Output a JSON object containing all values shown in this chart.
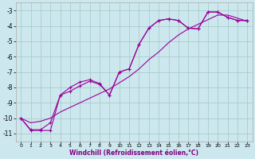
{
  "xlabel": "Windchill (Refroidissement éolien,°C)",
  "bg_color": "#cce8ee",
  "grid_color": "#aacccc",
  "line_color": "#990099",
  "xlim": [
    -0.5,
    23.5
  ],
  "ylim": [
    -11.5,
    -2.5
  ],
  "yticks": [
    -11,
    -10,
    -9,
    -8,
    -7,
    -6,
    -5,
    -4,
    -3
  ],
  "xticks": [
    0,
    1,
    2,
    3,
    4,
    5,
    6,
    7,
    8,
    9,
    10,
    11,
    12,
    13,
    14,
    15,
    16,
    17,
    18,
    19,
    20,
    21,
    22,
    23
  ],
  "curve_a_x": [
    0,
    1,
    2,
    3,
    4,
    5,
    6,
    7,
    8,
    9,
    10,
    11,
    12,
    13,
    14,
    15,
    16,
    17,
    18,
    19,
    20,
    21,
    22,
    23
  ],
  "curve_a_y": [
    -10.0,
    -10.8,
    -10.8,
    -10.8,
    -8.5,
    -8.0,
    -7.65,
    -7.5,
    -7.75,
    -8.5,
    -7.0,
    -6.8,
    -5.2,
    -4.15,
    -3.65,
    -3.55,
    -3.65,
    -4.15,
    -4.2,
    -3.1,
    -3.1,
    -3.45,
    -3.65,
    -3.65
  ],
  "curve_b_x": [
    0,
    1,
    2,
    3,
    4,
    5,
    6,
    7,
    8,
    9,
    10,
    11,
    12,
    13,
    14,
    15,
    16,
    17,
    18,
    19,
    20,
    21,
    22,
    23
  ],
  "curve_b_y": [
    -10.0,
    -10.75,
    -10.75,
    -10.3,
    -8.5,
    -8.25,
    -7.9,
    -7.6,
    -7.8,
    -8.5,
    -7.0,
    -6.8,
    -5.2,
    -4.15,
    -3.65,
    -3.55,
    -3.65,
    -4.15,
    -4.2,
    -3.1,
    -3.1,
    -3.45,
    -3.65,
    -3.65
  ],
  "curve_c_x": [
    0,
    1,
    2,
    3,
    4,
    5,
    6,
    7,
    8,
    9,
    10,
    11,
    12,
    13,
    14,
    15,
    16,
    17,
    18,
    19,
    20,
    21,
    22,
    23
  ],
  "curve_c_y": [
    -10.0,
    -10.3,
    -10.2,
    -10.0,
    -9.6,
    -9.3,
    -9.0,
    -8.7,
    -8.4,
    -8.1,
    -7.7,
    -7.3,
    -6.8,
    -6.2,
    -5.7,
    -5.1,
    -4.6,
    -4.2,
    -3.9,
    -3.6,
    -3.3,
    -3.3,
    -3.5,
    -3.7
  ]
}
